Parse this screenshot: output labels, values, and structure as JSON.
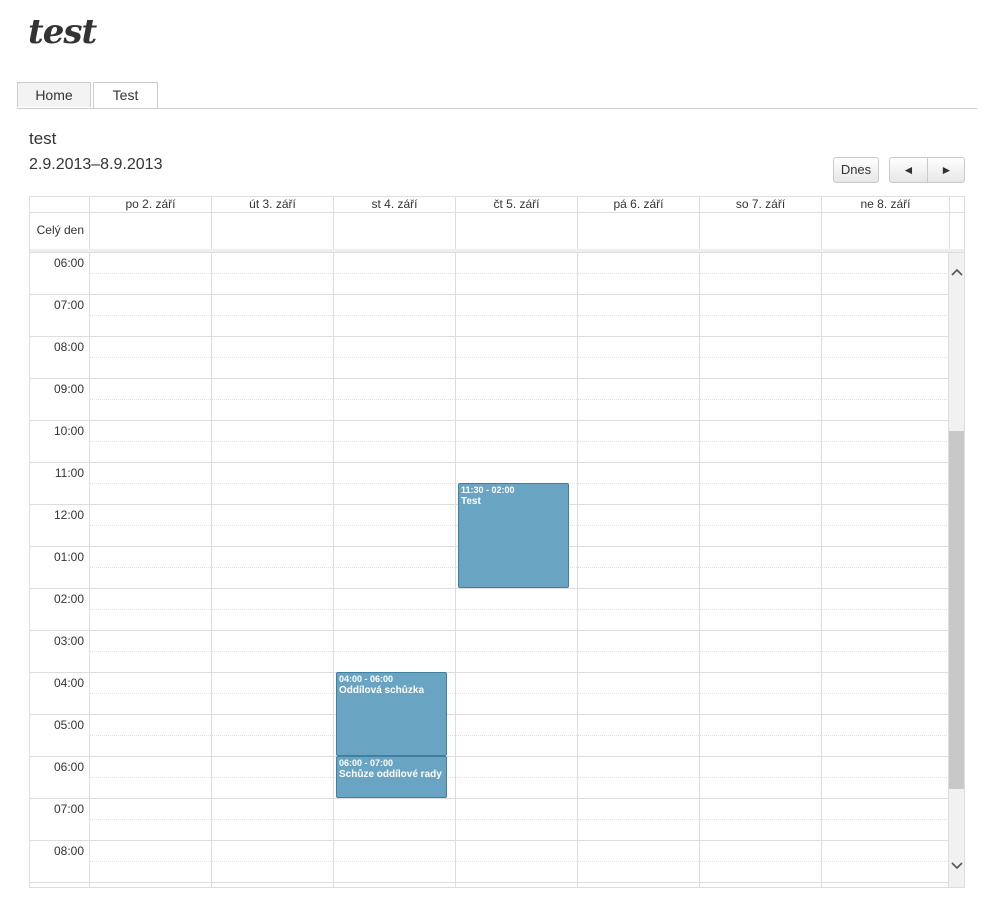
{
  "site": {
    "logo": "test"
  },
  "tabs": [
    {
      "label": "Home"
    },
    {
      "label": "Test"
    }
  ],
  "page": {
    "title": "test",
    "date_range": "2.9.2013–8.9.2013"
  },
  "toolbar": {
    "today_label": "Dnes",
    "prev_label": "◄",
    "next_label": "►"
  },
  "calendar": {
    "allday_label": "Celý den",
    "days": [
      "po 2. září",
      "út 3. září",
      "st 4. září",
      "čt 5. září",
      "pá 6. září",
      "so 7. září",
      "ne 8. září"
    ],
    "hours": [
      "06:00",
      "07:00",
      "08:00",
      "09:00",
      "10:00",
      "11:00",
      "12:00",
      "01:00",
      "02:00",
      "03:00",
      "04:00",
      "05:00",
      "06:00",
      "07:00",
      "08:00"
    ],
    "events": [
      {
        "time": "11:30 - 02:00",
        "title": "Test"
      },
      {
        "time": "04:00 - 06:00",
        "title": "Oddílová schůzka"
      },
      {
        "time": "06:00 - 07:00",
        "title": "Schůze oddílové rady"
      }
    ],
    "event_color": "#6aa4c3",
    "scroll_up_icon": "chevron-up-icon",
    "scroll_down_icon": "chevron-down-icon"
  }
}
